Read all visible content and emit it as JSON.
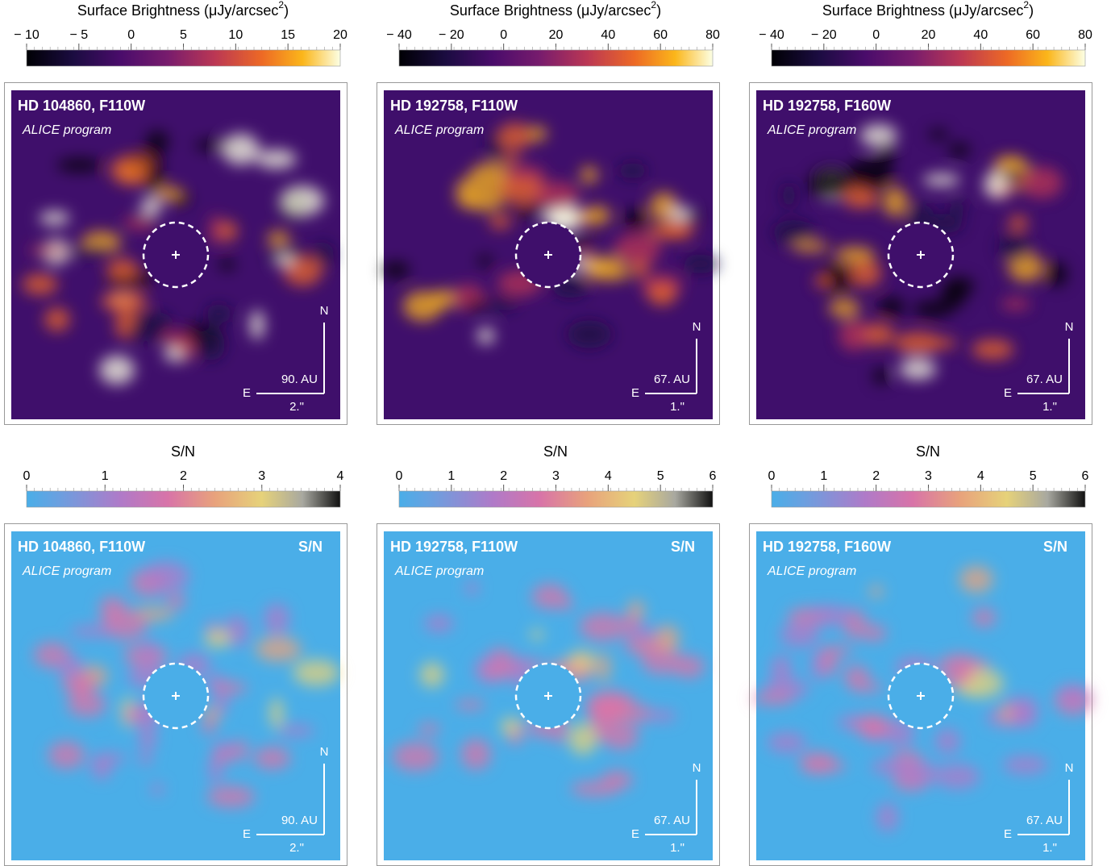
{
  "panels": [
    {
      "colorbar": {
        "label": "Surface Brightness (μJy/arcsec",
        "label_sup": "2",
        "label_end": ")",
        "lim": [
          -10,
          20
        ],
        "ticks": [
          {
            "value": -10,
            "label": "− 10"
          },
          {
            "value": -5,
            "label": "− 5"
          },
          0,
          5,
          10,
          15,
          20
        ]
      },
      "title": "HD 104860, F110W",
      "program": "ALICE program",
      "north": "N",
      "east": "E",
      "au": "90. AU",
      "arcsec": "2.\""
    },
    {
      "colorbar": {
        "label": "Surface Brightness (μJy/arcsec",
        "label_sup": "2",
        "label_end": ")",
        "lim": [
          -40,
          80
        ],
        "ticks": [
          {
            "value": -40,
            "label": "− 40"
          },
          {
            "value": -20,
            "label": "− 20"
          },
          0,
          20,
          40,
          60,
          80
        ]
      },
      "title": "HD 192758, F110W",
      "program": "ALICE program",
      "north": "N",
      "east": "E",
      "au": "67. AU",
      "arcsec": "1.\""
    },
    {
      "colorbar": {
        "label": "Surface Brightness (μJy/arcsec",
        "label_sup": "2",
        "label_end": ")",
        "lim": [
          -40,
          80
        ],
        "ticks": [
          {
            "value": -40,
            "label": "− 40"
          },
          {
            "value": -20,
            "label": "− 20"
          },
          0,
          20,
          40,
          60,
          80
        ]
      },
      "title": "HD 192758, F160W",
      "program": "ALICE program",
      "north": "N",
      "east": "E",
      "au": "67. AU",
      "arcsec": "1.\""
    },
    {
      "colorbar": {
        "label": "S/N",
        "lim": [
          0,
          4
        ],
        "ticks": [
          0,
          1,
          2,
          3,
          4
        ]
      },
      "title": "HD 104860, F110W",
      "program": "ALICE program",
      "tag": "S/N",
      "north": "N",
      "east": "E",
      "au": "90. AU",
      "arcsec": "2.\""
    },
    {
      "colorbar": {
        "label": "S/N",
        "lim": [
          0,
          6
        ],
        "ticks": [
          0,
          1,
          2,
          3,
          4,
          5,
          6
        ]
      },
      "title": "HD 192758, F110W",
      "program": "ALICE program",
      "tag": "S/N",
      "north": "N",
      "east": "E",
      "au": "67. AU",
      "arcsec": "1.\""
    },
    {
      "colorbar": {
        "label": "S/N",
        "lim": [
          0,
          6
        ],
        "ticks": [
          0,
          1,
          2,
          3,
          4,
          5,
          6
        ]
      },
      "title": "HD 192758, F160W",
      "program": "ALICE program",
      "tag": "S/N",
      "north": "N",
      "east": "E",
      "au": "67. AU",
      "arcsec": "1.\""
    }
  ]
}
